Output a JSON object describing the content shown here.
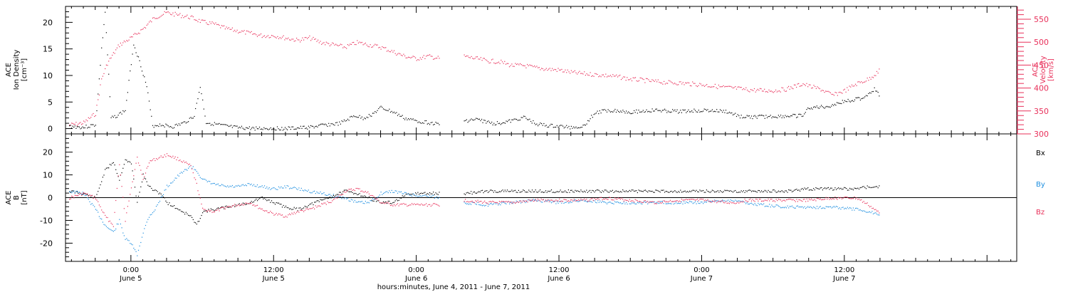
{
  "xaxis": {
    "ticks": [
      {
        "t": 24,
        "time": "0:00",
        "date": "June 5"
      },
      {
        "t": 36,
        "time": "12:00",
        "date": "June 5"
      },
      {
        "t": 48,
        "time": "0:00",
        "date": "June 6"
      },
      {
        "t": 60,
        "time": "12:00",
        "date": "June 6"
      },
      {
        "t": 72,
        "time": "0:00",
        "date": "June 7"
      },
      {
        "t": 84,
        "time": "12:00",
        "date": "June 7"
      }
    ],
    "xlim": [
      18.5,
      98.5
    ],
    "title": "hours:minutes, June  4, 2011 - June  7, 2011"
  },
  "colors": {
    "density": "#000000",
    "velocity": "#e8305a",
    "bx": "#000000",
    "by": "#1e8fe0",
    "bz": "#e8305a"
  },
  "chart_data": [
    {
      "type": "scatter",
      "ylabel_left": [
        "ACE",
        "Ion Density",
        "[cm⁻³]"
      ],
      "ylabel_right": [
        "ACE",
        "Velocity",
        "[km/s]"
      ],
      "y_ticks_left": [
        0,
        5,
        10,
        15,
        20
      ],
      "ylim_left": [
        -1,
        23
      ],
      "y_ticks_right": [
        300,
        350,
        400,
        450,
        500,
        550
      ],
      "ylim_right": [
        300,
        578
      ],
      "series": [
        {
          "axis": "left",
          "x": [
            18.8,
            20.0,
            21.0,
            21.5,
            21.8,
            22.3,
            22.8,
            23.5,
            24.2,
            24.8,
            25.3,
            25.8,
            26.5,
            27.5,
            28.5,
            29.3,
            29.8,
            30.3,
            30.8,
            31.3,
            32.0,
            33.0,
            34.5,
            36.0,
            37.5,
            39.0,
            40.5,
            41.5,
            42.0,
            42.8,
            43.5,
            44.3,
            45.0,
            46.0,
            47.0,
            48.0,
            49.0,
            50.0,
            50.5,
            52.0,
            53.0,
            54.5,
            56.0,
            57.0,
            58.0,
            59.0,
            60.0,
            61.0,
            62.0,
            63.0,
            64.0,
            64.5,
            66.0,
            68.0,
            70.0,
            72.0,
            74.0,
            75.0,
            75.5,
            77.0,
            79.0,
            80.5,
            81.0,
            82.5,
            84.0,
            85.5,
            86.5,
            87.0
          ],
          "y": [
            0.5,
            0.3,
            0.8,
            15,
            22,
            2.0,
            2.5,
            3.5,
            16,
            12,
            8,
            0.6,
            0.8,
            0.4,
            1.2,
            2.5,
            8,
            1.2,
            1.0,
            0.8,
            0.5,
            0.2,
            0.1,
            0.1,
            0.1,
            0.3,
            0.8,
            1.0,
            1.5,
            2.5,
            2.0,
            2.8,
            4.0,
            3.2,
            2.0,
            1.5,
            1.2,
            0.8,
            null,
            1.5,
            1.8,
            1.0,
            1.5,
            2.2,
            1.0,
            0.6,
            0.5,
            0.3,
            0.5,
            3.0,
            3.5,
            3.5,
            3.2,
            3.5,
            3.3,
            3.5,
            3.3,
            2.5,
            2.2,
            2.3,
            2.4,
            2.5,
            4.0,
            4.2,
            5.2,
            5.8,
            7.5,
            6.0
          ]
        },
        {
          "axis": "right",
          "x": [
            18.8,
            20.0,
            21.0,
            21.5,
            22.0,
            23.0,
            24.0,
            25.0,
            26.0,
            27.0,
            28.0,
            29.0,
            30.0,
            31.0,
            32.0,
            33.0,
            34.0,
            35.0,
            36.0,
            37.0,
            38.0,
            39.0,
            40.0,
            41.0,
            42.0,
            43.0,
            44.0,
            45.0,
            46.0,
            47.0,
            48.0,
            49.0,
            50.0,
            50.5,
            52.0,
            53.0,
            54.0,
            55.0,
            56.0,
            57.0,
            58.0,
            59.0,
            60.0,
            61.0,
            62.0,
            63.0,
            64.0,
            65.0,
            66.0,
            67.0,
            68.0,
            69.0,
            70.0,
            71.0,
            72.0,
            73.0,
            74.0,
            75.0,
            75.5,
            76.5,
            78.0,
            79.0,
            80.5,
            81.0,
            82.0,
            83.0,
            84.0,
            85.0,
            86.0,
            87.0
          ],
          "y": [
            320,
            325,
            345,
            420,
            455,
            495,
            510,
            530,
            555,
            565,
            560,
            555,
            545,
            540,
            530,
            525,
            520,
            515,
            515,
            510,
            505,
            510,
            500,
            495,
            490,
            500,
            495,
            490,
            480,
            470,
            465,
            470,
            465,
            null,
            470,
            465,
            460,
            458,
            450,
            450,
            445,
            442,
            440,
            435,
            432,
            430,
            428,
            425,
            420,
            418,
            415,
            413,
            412,
            410,
            408,
            405,
            402,
            400,
            398,
            396,
            395,
            398,
            410,
            405,
            398,
            385,
            395,
            410,
            420,
            440
          ]
        }
      ]
    },
    {
      "type": "scatter",
      "ylabel_left": [
        "ACE",
        "B",
        "[nT]"
      ],
      "y_ticks_left": [
        -20,
        -10,
        0,
        10,
        20
      ],
      "ylim_left": [
        -28,
        28
      ],
      "legend_placement": "right",
      "series": [
        {
          "name": "Bx",
          "x": [
            18.8,
            20.0,
            21.0,
            21.8,
            22.5,
            23.0,
            23.5,
            24.0,
            24.5,
            25.0,
            25.5,
            26.0,
            26.5,
            27.0,
            28.0,
            29.0,
            29.5,
            30.0,
            31.0,
            32.0,
            33.0,
            34.0,
            35.0,
            36.0,
            37.0,
            38.0,
            39.0,
            40.0,
            41.0,
            42.0,
            43.0,
            44.0,
            45.0,
            46.0,
            47.0,
            48.0,
            49.0,
            50.0,
            50.5,
            52.0,
            54.0,
            56.0,
            58.0,
            60.0,
            62.0,
            64.0,
            66.0,
            68.0,
            70.0,
            72.0,
            74.0,
            75.0,
            75.5,
            77.0,
            79.0,
            81.0,
            83.0,
            85.0,
            86.0,
            87.0
          ],
          "y": [
            3,
            2,
            0,
            12,
            16,
            8,
            17,
            15,
            -2,
            10,
            5,
            3,
            2,
            -2,
            -5,
            -8,
            -12,
            -6,
            -5,
            -4,
            -3,
            -2,
            0,
            -2,
            -4,
            -5,
            -3,
            -1,
            1,
            3,
            2,
            0,
            -2,
            -2,
            1,
            2,
            2,
            2,
            null,
            2,
            3,
            3,
            3,
            3,
            3,
            3,
            3,
            3,
            3,
            3,
            3,
            3,
            3,
            3,
            3,
            4,
            4,
            4,
            5,
            5
          ]
        },
        {
          "name": "By",
          "x": [
            18.8,
            20.0,
            21.0,
            21.8,
            22.5,
            23.0,
            23.5,
            24.0,
            24.5,
            25.0,
            25.5,
            26.0,
            26.5,
            27.0,
            28.0,
            29.0,
            29.5,
            30.0,
            31.0,
            32.0,
            33.0,
            34.0,
            35.0,
            36.0,
            37.0,
            38.0,
            39.0,
            40.0,
            41.0,
            42.0,
            43.0,
            44.0,
            45.0,
            46.0,
            47.0,
            48.0,
            49.0,
            50.0,
            50.5,
            52.0,
            54.0,
            56.0,
            58.0,
            60.0,
            62.0,
            64.0,
            66.0,
            68.0,
            70.0,
            72.0,
            74.0,
            75.0,
            75.5,
            77.0,
            79.0,
            81.0,
            83.0,
            85.0,
            86.0,
            87.0
          ],
          "y": [
            3,
            2,
            -5,
            -12,
            -15,
            -10,
            -18,
            -20,
            -25,
            -15,
            -8,
            -5,
            0,
            5,
            10,
            14,
            12,
            8,
            6,
            5,
            5,
            6,
            5,
            4,
            5,
            4,
            3,
            2,
            1,
            0,
            -2,
            -2,
            2,
            3,
            2,
            1,
            1,
            0,
            null,
            -2,
            -3,
            -2,
            -1,
            -2,
            -1,
            -2,
            -2,
            -2,
            -2,
            -2,
            -1,
            -1,
            -2,
            -3,
            -4,
            -4,
            -4,
            -5,
            -6,
            -7
          ]
        },
        {
          "name": "Bz",
          "x": [
            18.8,
            20.0,
            21.0,
            21.8,
            22.5,
            23.0,
            23.5,
            24.0,
            24.5,
            25.0,
            25.5,
            26.0,
            26.5,
            27.0,
            28.0,
            29.0,
            29.5,
            30.0,
            31.0,
            32.0,
            33.0,
            34.0,
            35.0,
            36.0,
            37.0,
            38.0,
            39.0,
            40.0,
            41.0,
            42.0,
            43.0,
            44.0,
            45.0,
            46.0,
            47.0,
            48.0,
            49.0,
            50.0,
            50.5,
            52.0,
            54.0,
            56.0,
            58.0,
            60.0,
            62.0,
            64.0,
            66.0,
            68.0,
            70.0,
            72.0,
            74.0,
            75.0,
            75.5,
            77.0,
            79.0,
            81.0,
            83.0,
            85.0,
            86.0,
            87.0
          ],
          "y": [
            0,
            2,
            0,
            -8,
            -12,
            15,
            -10,
            5,
            18,
            8,
            16,
            17,
            18,
            19,
            17,
            14,
            6,
            -5,
            -6,
            -4,
            -3,
            -2,
            -5,
            -7,
            -8,
            -6,
            -5,
            -3,
            -1,
            3,
            4,
            2,
            -2,
            -3,
            -3,
            -3,
            -3,
            -3,
            null,
            -1,
            -2,
            -2,
            -1,
            -1,
            -1,
            0,
            -1,
            -2,
            -1,
            -1,
            -2,
            -2,
            -1,
            -1,
            -1,
            -1,
            0,
            0,
            -3,
            -7
          ]
        }
      ]
    }
  ]
}
